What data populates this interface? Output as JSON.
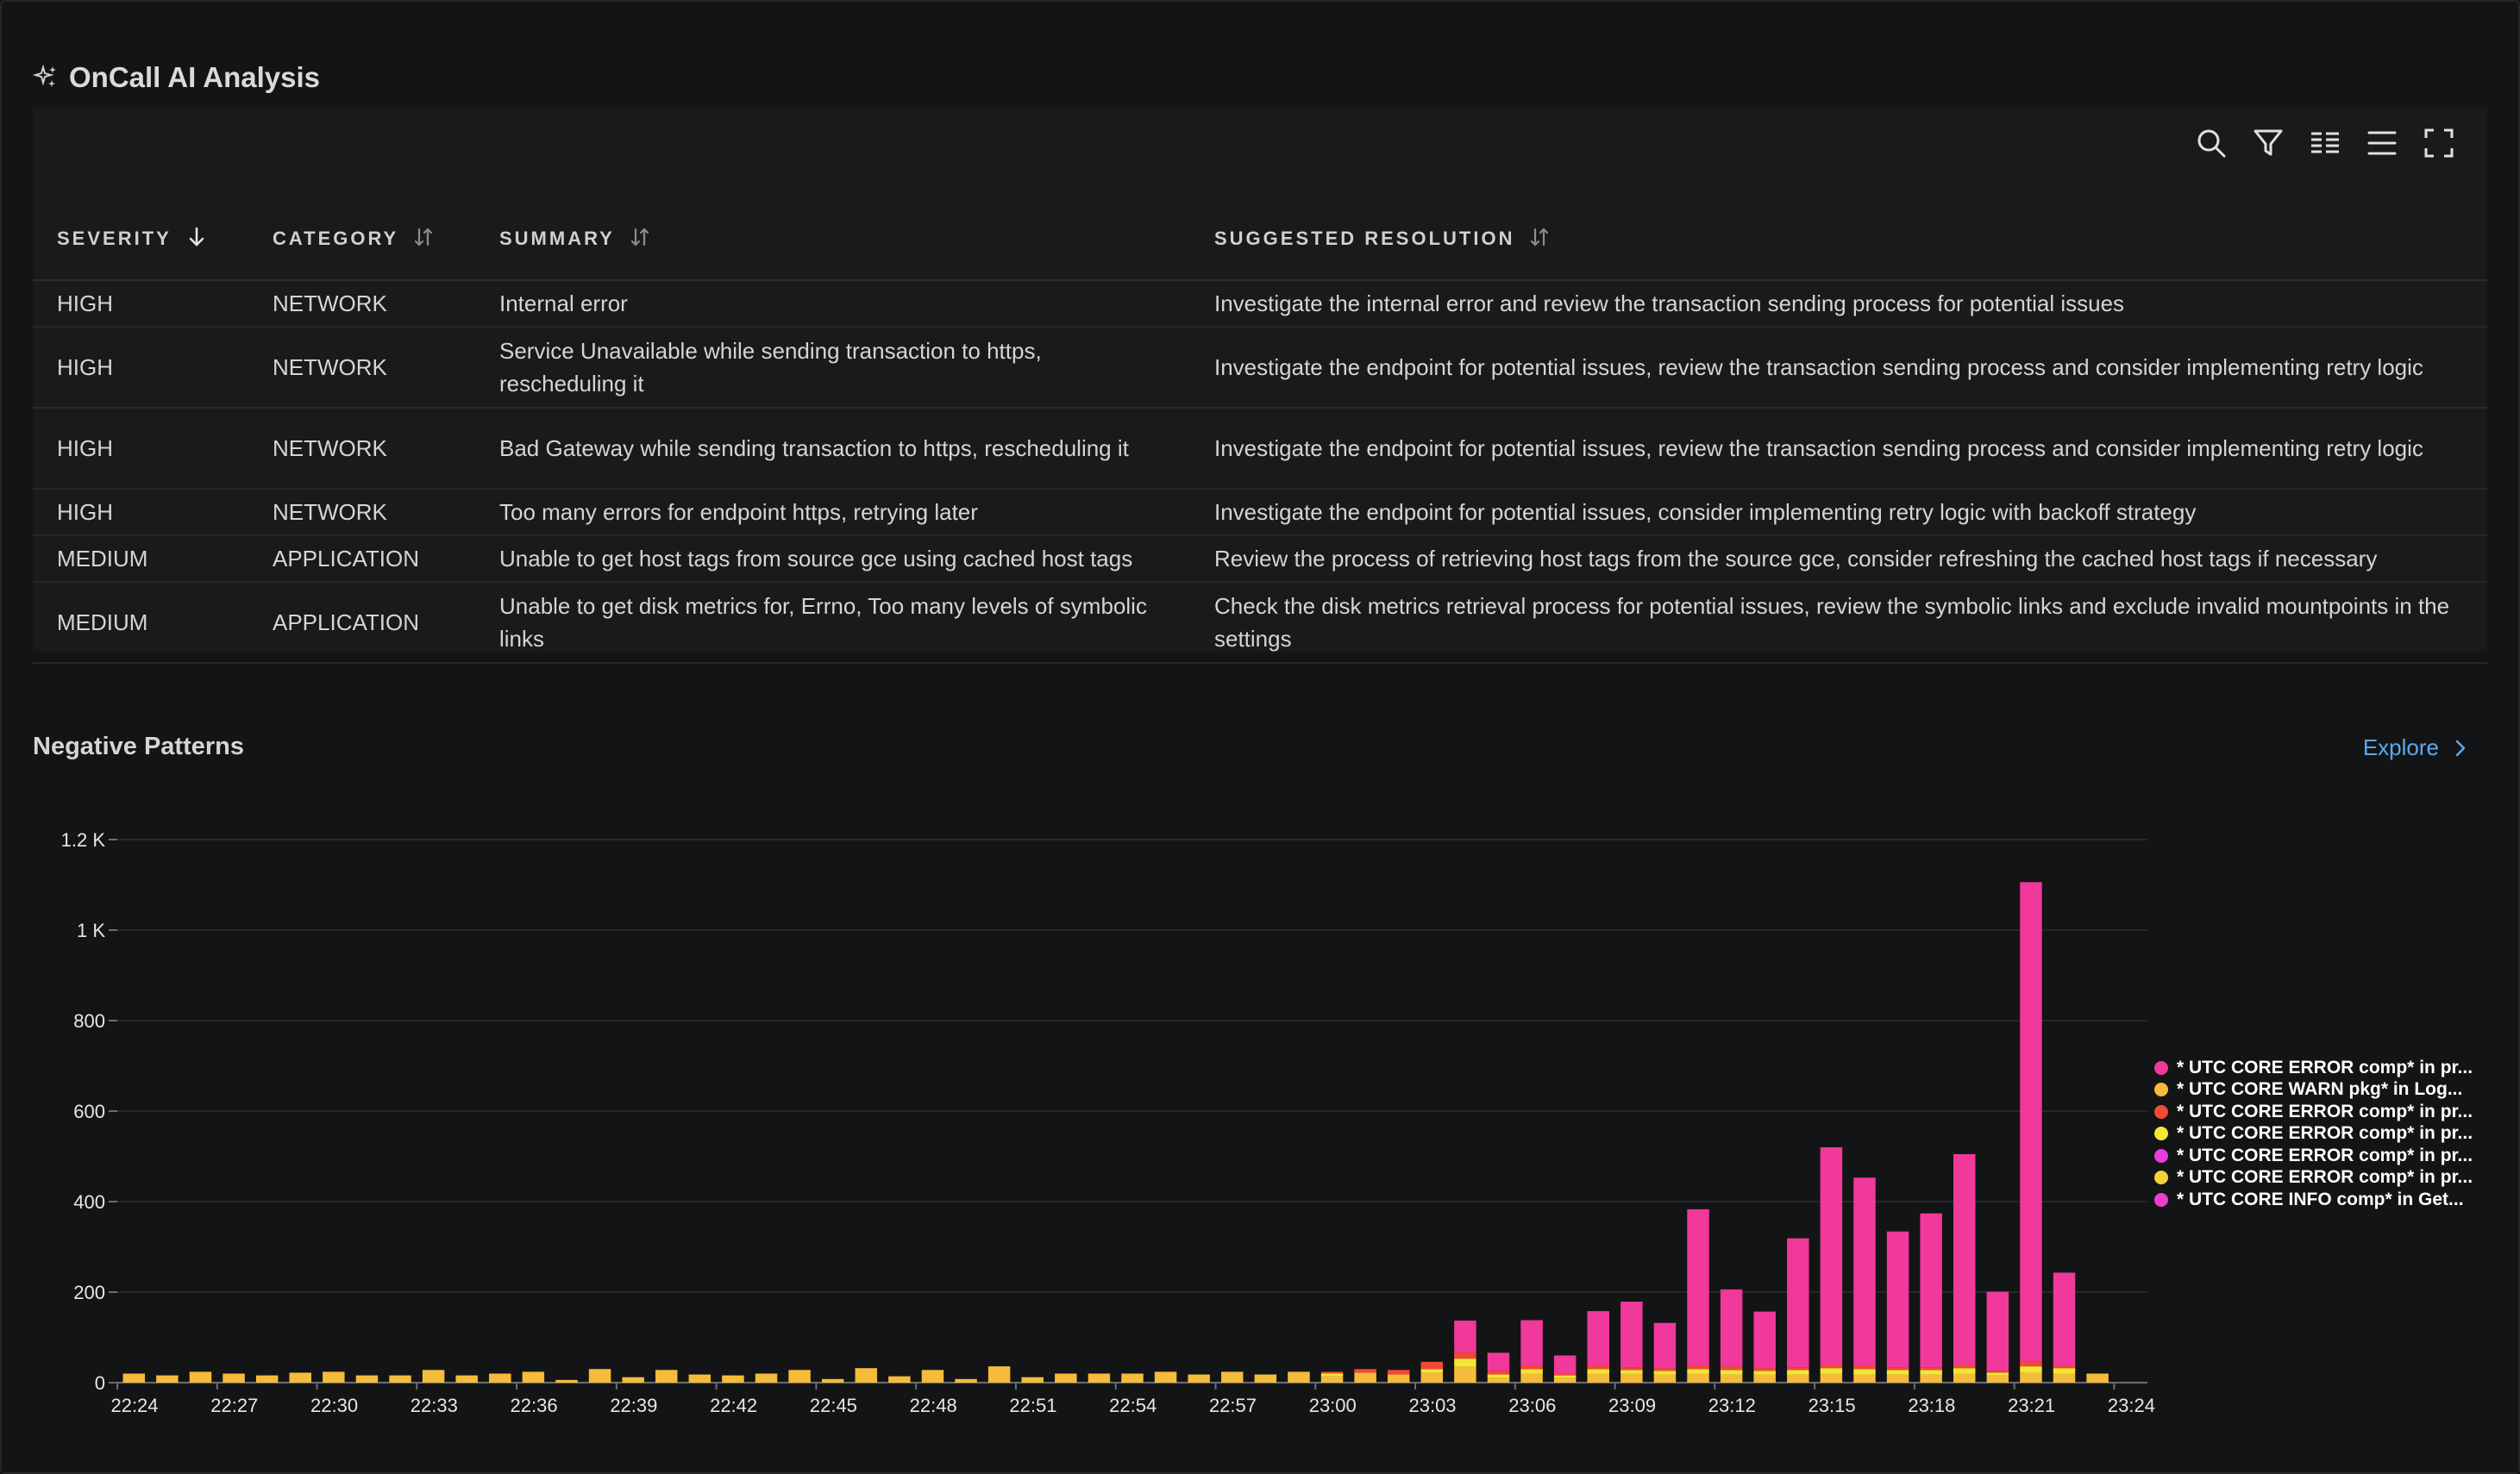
{
  "panel": {
    "title": "OnCall AI Analysis"
  },
  "table": {
    "columns": [
      "SEVERITY",
      "CATEGORY",
      "SUMMARY",
      "SUGGESTED RESOLUTION"
    ],
    "rows": [
      {
        "severity": "HIGH",
        "category": "NETWORK",
        "summary": "Internal error",
        "resolution": "Investigate the internal error and review the transaction sending process for potential issues"
      },
      {
        "severity": "HIGH",
        "category": "NETWORK",
        "summary": "Service Unavailable while sending transaction to https, rescheduling it",
        "resolution": "Investigate the endpoint for potential issues, review the transaction sending process and consider implementing retry logic"
      },
      {
        "severity": "HIGH",
        "category": "NETWORK",
        "summary": "Bad Gateway while sending transaction to https, rescheduling it",
        "resolution": "Investigate the endpoint for potential issues, review the transaction sending process and consider implementing retry logic"
      },
      {
        "severity": "HIGH",
        "category": "NETWORK",
        "summary": "Too many errors for endpoint https, retrying later",
        "resolution": "Investigate the endpoint for potential issues, consider implementing retry logic with backoff strategy"
      },
      {
        "severity": "MEDIUM",
        "category": "APPLICATION",
        "summary": "Unable to get host tags from source gce using cached host tags",
        "resolution": "Review the process of retrieving host tags from the source gce, consider refreshing the cached host tags if necessary"
      },
      {
        "severity": "MEDIUM",
        "category": "APPLICATION",
        "summary": "Unable to get disk metrics for, Errno, Too many levels of symbolic links",
        "resolution": "Check the disk metrics retrieval process for potential issues, review the symbolic links and exclude invalid mountpoints in the settings"
      }
    ]
  },
  "section": {
    "title": "Negative Patterns",
    "explore_label": "Explore"
  },
  "colors": {
    "pink": "#f0399a",
    "amber": "#f5bc3b",
    "red": "#f04a36",
    "yellow": "#f3e636",
    "magenta": "#e83be0",
    "link": "#5aa9f0"
  },
  "chart_data": {
    "type": "bar",
    "stacked": true,
    "title": "",
    "xlabel": "",
    "ylabel": "",
    "ylim": [
      0,
      1200
    ],
    "y_ticks": [
      "0",
      "200",
      "400",
      "600",
      "800",
      "1 K",
      "1.2 K"
    ],
    "x_ticks": [
      "22:24",
      "22:27",
      "22:30",
      "22:33",
      "22:36",
      "22:39",
      "22:42",
      "22:45",
      "22:48",
      "22:51",
      "22:54",
      "22:57",
      "23:00",
      "23:03",
      "23:06",
      "23:09",
      "23:12",
      "23:15",
      "23:18",
      "23:21",
      "23:24"
    ],
    "grid": true,
    "legend_position": "right",
    "categories": [
      "22:24",
      "22:25",
      "22:26",
      "22:27",
      "22:28",
      "22:29",
      "22:30",
      "22:31",
      "22:32",
      "22:33",
      "22:34",
      "22:35",
      "22:36",
      "22:37",
      "22:38",
      "22:39",
      "22:40",
      "22:41",
      "22:42",
      "22:43",
      "22:44",
      "22:45",
      "22:46",
      "22:47",
      "22:48",
      "22:49",
      "22:50",
      "22:51",
      "22:52",
      "22:53",
      "22:54",
      "22:55",
      "22:56",
      "22:57",
      "22:58",
      "22:59",
      "23:00",
      "23:01",
      "23:02",
      "23:03",
      "23:04",
      "23:05",
      "23:06",
      "23:07",
      "23:08",
      "23:09",
      "23:10",
      "23:11",
      "23:12",
      "23:13",
      "23:14",
      "23:15",
      "23:16",
      "23:17",
      "23:18",
      "23:19",
      "23:20",
      "23:21",
      "23:22",
      "23:23"
    ],
    "series": [
      {
        "name": "* UTC CORE ERROR comp* in pr...",
        "color": "#f0399a",
        "values": [
          0,
          0,
          0,
          0,
          0,
          0,
          0,
          0,
          0,
          0,
          0,
          0,
          0,
          0,
          0,
          0,
          0,
          0,
          0,
          0,
          0,
          0,
          0,
          0,
          0,
          0,
          0,
          0,
          0,
          0,
          0,
          0,
          0,
          0,
          0,
          0,
          0,
          0,
          0,
          0,
          70,
          40,
          100,
          40,
          120,
          145,
          100,
          345,
          170,
          125,
          285,
          480,
          415,
          300,
          340,
          465,
          175,
          1060,
          205,
          0
        ]
      },
      {
        "name": "* UTC CORE WARN pkg* in Log...",
        "color": "#f5bc3b",
        "values": [
          20,
          16,
          24,
          20,
          16,
          22,
          24,
          16,
          16,
          28,
          16,
          20,
          24,
          6,
          30,
          12,
          28,
          18,
          16,
          20,
          28,
          8,
          32,
          14,
          28,
          8,
          36,
          12,
          20,
          20,
          20,
          24,
          18,
          24,
          18,
          24,
          14,
          22,
          18,
          22,
          35,
          10,
          20,
          10,
          20,
          20,
          18,
          20,
          18,
          18,
          18,
          20,
          18,
          18,
          18,
          20,
          16,
          22,
          20,
          20
        ]
      },
      {
        "name": "* UTC CORE ERROR comp* in pr...",
        "color": "#f04a36",
        "values": [
          0,
          0,
          0,
          0,
          0,
          0,
          0,
          0,
          0,
          0,
          0,
          0,
          0,
          0,
          0,
          0,
          0,
          0,
          0,
          0,
          0,
          0,
          0,
          0,
          0,
          0,
          0,
          0,
          0,
          0,
          0,
          0,
          0,
          0,
          0,
          0,
          4,
          8,
          10,
          16,
          14,
          8,
          8,
          4,
          8,
          6,
          6,
          8,
          8,
          6,
          6,
          8,
          8,
          6,
          6,
          8,
          4,
          10,
          6,
          0
        ]
      },
      {
        "name": "* UTC CORE ERROR comp* in pr...",
        "color": "#f3e636",
        "values": [
          0,
          0,
          0,
          0,
          0,
          0,
          0,
          0,
          0,
          0,
          0,
          0,
          0,
          0,
          0,
          0,
          0,
          0,
          0,
          0,
          0,
          0,
          0,
          0,
          0,
          0,
          0,
          0,
          0,
          0,
          0,
          0,
          0,
          0,
          0,
          0,
          6,
          0,
          0,
          8,
          18,
          8,
          10,
          6,
          10,
          8,
          8,
          10,
          10,
          8,
          10,
          12,
          12,
          10,
          10,
          12,
          6,
          14,
          12,
          0
        ]
      },
      {
        "name": "* UTC CORE ERROR comp* in pr...",
        "color": "#e83be0",
        "values": [
          0,
          0,
          0,
          0,
          0,
          0,
          0,
          0,
          0,
          0,
          0,
          0,
          0,
          0,
          0,
          0,
          0,
          0,
          0,
          0,
          0,
          0,
          0,
          0,
          0,
          0,
          0,
          0,
          0,
          0,
          0,
          0,
          0,
          0,
          0,
          0,
          0,
          0,
          0,
          0,
          0,
          0,
          0,
          0,
          0,
          0,
          0,
          0,
          0,
          0,
          0,
          0,
          0,
          0,
          0,
          0,
          0,
          0,
          0,
          0
        ]
      },
      {
        "name": "* UTC CORE ERROR comp* in pr...",
        "color": "#f2d23a",
        "values": [
          0,
          0,
          0,
          0,
          0,
          0,
          0,
          0,
          0,
          0,
          0,
          0,
          0,
          0,
          0,
          0,
          0,
          0,
          0,
          0,
          0,
          0,
          0,
          0,
          0,
          0,
          0,
          0,
          0,
          0,
          0,
          0,
          0,
          0,
          0,
          0,
          0,
          0,
          0,
          0,
          0,
          0,
          0,
          0,
          0,
          0,
          0,
          0,
          0,
          0,
          0,
          0,
          0,
          0,
          0,
          0,
          0,
          0,
          0,
          0
        ]
      },
      {
        "name": "* UTC CORE INFO comp* in Get...",
        "color": "#ee3ec8",
        "values": [
          0,
          0,
          0,
          0,
          0,
          0,
          0,
          0,
          0,
          0,
          0,
          0,
          0,
          0,
          0,
          0,
          0,
          0,
          0,
          0,
          0,
          0,
          0,
          0,
          0,
          0,
          0,
          0,
          0,
          0,
          0,
          0,
          0,
          0,
          0,
          0,
          0,
          0,
          0,
          0,
          0,
          0,
          0,
          0,
          0,
          0,
          0,
          0,
          0,
          0,
          0,
          0,
          0,
          0,
          0,
          0,
          0,
          0,
          0,
          0
        ]
      }
    ]
  }
}
